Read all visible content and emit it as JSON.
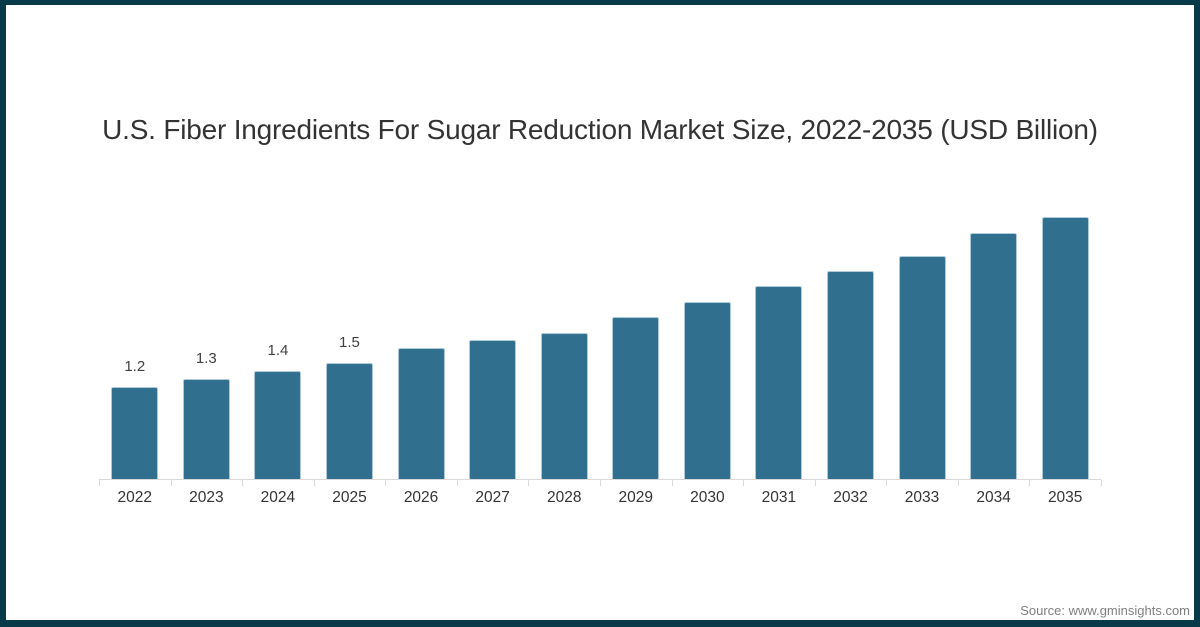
{
  "frame": {
    "border_color": "#083a4a",
    "background_color": "#ffffff"
  },
  "chart_data": {
    "type": "bar",
    "title": "U.S. Fiber Ingredients For Sugar Reduction Market Size, 2022-2035 (USD Billion)",
    "xlabel": "",
    "ylabel": "",
    "categories": [
      "2022",
      "2023",
      "2024",
      "2025",
      "2026",
      "2027",
      "2028",
      "2029",
      "2030",
      "2031",
      "2032",
      "2033",
      "2034",
      "2035"
    ],
    "values": [
      1.2,
      1.3,
      1.4,
      1.5,
      1.7,
      1.8,
      1.9,
      2.1,
      2.3,
      2.5,
      2.7,
      2.9,
      3.2,
      3.4
    ],
    "bar_labels": [
      "1.2",
      "1.3",
      "1.4",
      "1.5",
      "",
      "",
      "",
      "",
      "",
      "",
      "",
      "",
      "",
      ""
    ],
    "ylim": [
      0,
      3.7
    ],
    "grid": false,
    "legend": null,
    "y_axis_shown": false,
    "bar_color": "#316f8e",
    "bar_edge_color": "#aecbdb",
    "axis_color": "#d9d9d9",
    "title_color": "#333333",
    "bar_label_color": "#404040",
    "tick_label_color": "#333333"
  },
  "source": {
    "label": "Source: www.gminsights.com",
    "color": "#7f7f7f"
  }
}
